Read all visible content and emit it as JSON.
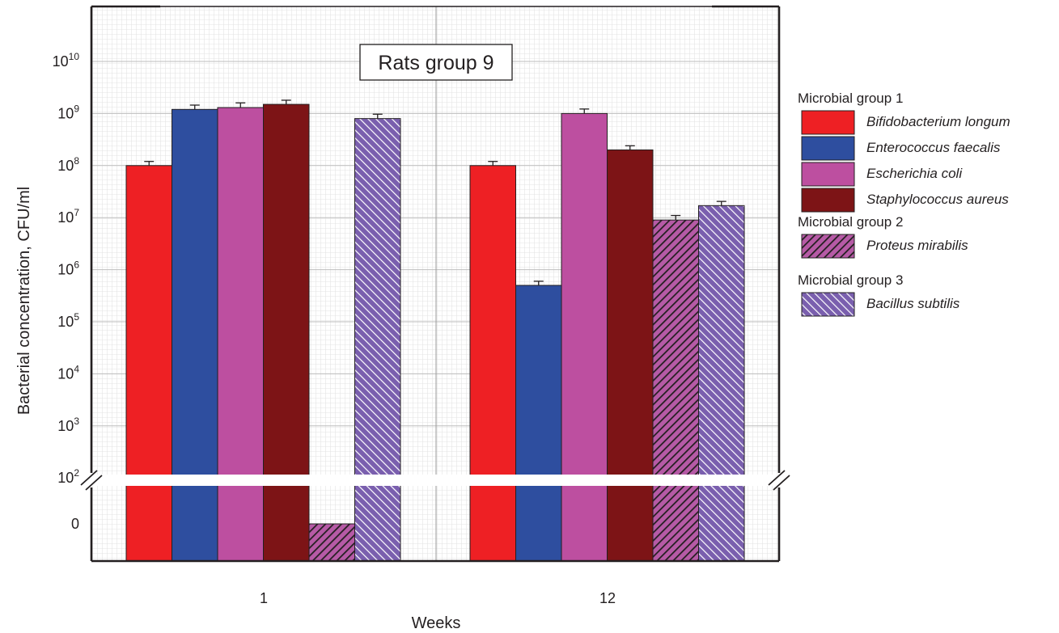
{
  "chart_data": {
    "type": "bar",
    "title": "Rats group 9",
    "xlabel": "Weeks",
    "ylabel": "Bacterial concentration, CFU/ml",
    "y_scale": "log",
    "ylim": [
      100,
      100000000000
    ],
    "axis_break": "between 0 and 10^2",
    "categories": [
      "1",
      "12"
    ],
    "y_ticks": [
      {
        "base": "0",
        "exp": ""
      },
      {
        "base": "10",
        "exp": "2"
      },
      {
        "base": "10",
        "exp": "3"
      },
      {
        "base": "10",
        "exp": "4"
      },
      {
        "base": "10",
        "exp": "5"
      },
      {
        "base": "10",
        "exp": "6"
      },
      {
        "base": "10",
        "exp": "7"
      },
      {
        "base": "10",
        "exp": "8"
      },
      {
        "base": "10",
        "exp": "9"
      },
      {
        "base": "10",
        "exp": "10"
      }
    ],
    "legend_placement": "right",
    "legend_groups": [
      {
        "label": "Microbial group 1",
        "series": [
          0,
          1,
          2,
          3
        ]
      },
      {
        "label": "Microbial group 2",
        "series": [
          4
        ]
      },
      {
        "label": "Microbial group 3",
        "series": [
          5
        ]
      }
    ],
    "series": [
      {
        "name": "Bifidobacterium longum",
        "color": "#ee2024",
        "pattern": "solid",
        "values": [
          100000000,
          100000000
        ],
        "errors": [
          20000000,
          20000000
        ]
      },
      {
        "name": "Enterococcus faecalis",
        "color": "#2e4e9f",
        "pattern": "solid",
        "values": [
          1200000000,
          500000
        ],
        "errors": [
          250000000,
          100000
        ]
      },
      {
        "name": "Escherichia coli",
        "color": "#bd4fa0",
        "pattern": "solid",
        "values": [
          1300000000,
          1000000000
        ],
        "errors": [
          300000000,
          220000000
        ]
      },
      {
        "name": "Staphylococcus aureus",
        "color": "#7d1416",
        "pattern": "solid",
        "values": [
          1500000000,
          200000000
        ],
        "errors": [
          300000000,
          40000000
        ]
      },
      {
        "name": "Proteus mirabilis",
        "color": "#a2418e",
        "pattern": "hatch-dark",
        "values": [
          0,
          9000000
        ],
        "errors": [
          0,
          2000000
        ]
      },
      {
        "name": "Bacillus subtilis",
        "color": "#7a5fae",
        "pattern": "hatch-light",
        "values": [
          800000000,
          17000000
        ],
        "errors": [
          170000000,
          3500000
        ]
      }
    ]
  }
}
